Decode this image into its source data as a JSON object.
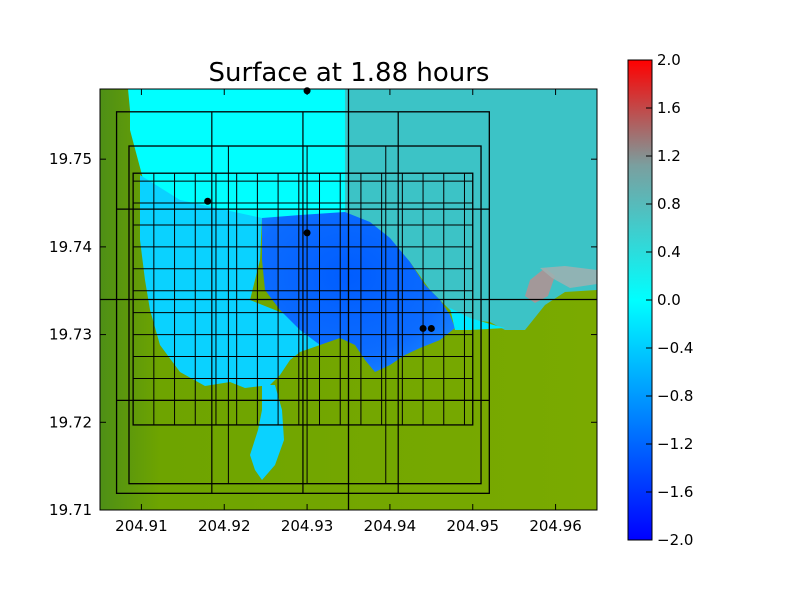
{
  "chart_data": {
    "type": "heatmap",
    "title": "Surface at 1.88 hours",
    "xlim": [
      204.905,
      204.965
    ],
    "ylim": [
      19.71,
      19.758
    ],
    "x_ticks": [
      204.91,
      204.92,
      204.93,
      204.94,
      204.95,
      204.96
    ],
    "x_tick_labels": [
      "204.91",
      "204.92",
      "204.93",
      "204.94",
      "204.95",
      "204.96"
    ],
    "y_ticks": [
      19.71,
      19.72,
      19.73,
      19.74,
      19.75
    ],
    "y_tick_labels": [
      "19.71",
      "19.72",
      "19.73",
      "19.74",
      "19.75"
    ],
    "colorbar": {
      "range": [
        -2.0,
        2.0
      ],
      "ticks": [
        2.0,
        1.6,
        1.2,
        0.8,
        0.4,
        0.0,
        -0.4,
        -0.8,
        -1.2,
        -1.6,
        -2.0
      ],
      "tick_labels": [
        "2.0",
        "1.6",
        "1.2",
        "0.8",
        "0.4",
        "0.0",
        "−0.4",
        "−0.8",
        "−1.2",
        "−1.6",
        "−2.0"
      ],
      "colors": [
        "#0000ff",
        "#00ffff",
        "#ff0000"
      ]
    },
    "land_color": "#78aa00",
    "gauges": [
      [
        204.93,
        19.7578
      ],
      [
        204.918,
        19.7452
      ],
      [
        204.93,
        19.7416
      ],
      [
        204.944,
        19.7307
      ],
      [
        204.945,
        19.7307
      ]
    ],
    "patch_boxes": [
      [
        204.907,
        204.952,
        19.7119,
        19.7554
      ],
      [
        204.9085,
        204.951,
        19.713,
        19.7515
      ],
      [
        204.909,
        204.95,
        19.7197,
        19.7484
      ]
    ],
    "coarse_grid": {
      "x": [
        204.935
      ],
      "y": [
        19.734
      ]
    },
    "fine_grid_x": [
      204.9115,
      204.914,
      204.9165,
      204.919,
      204.9215,
      204.924,
      204.9265,
      204.929,
      204.9315,
      204.934,
      204.9365,
      204.939,
      204.9415,
      204.944,
      204.9465,
      204.949
    ],
    "fine_grid_y": [
      19.7225,
      19.725,
      19.7275,
      19.73,
      19.7325,
      19.735,
      19.7375,
      19.74,
      19.7425,
      19.745,
      19.7475
    ]
  }
}
